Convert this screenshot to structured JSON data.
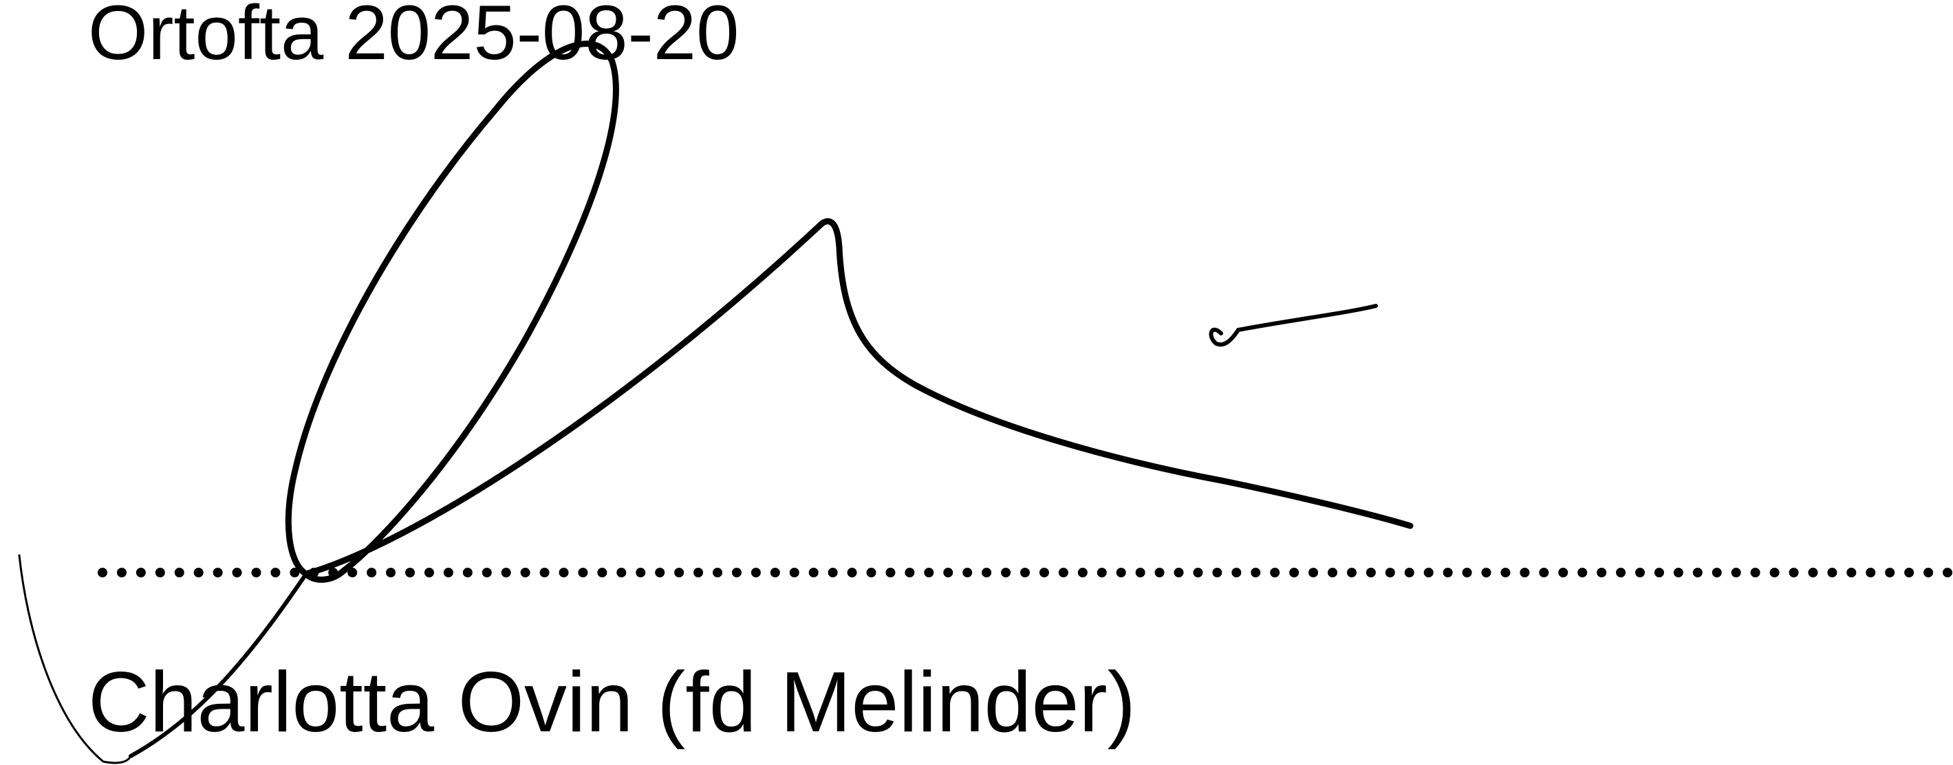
{
  "document": {
    "place_date": "Ortofta 2025-08-20",
    "signer_name": "Charlotta Ovin (fd Melinder)"
  },
  "colors": {
    "ink": "#000000",
    "paper": "#ffffff"
  }
}
